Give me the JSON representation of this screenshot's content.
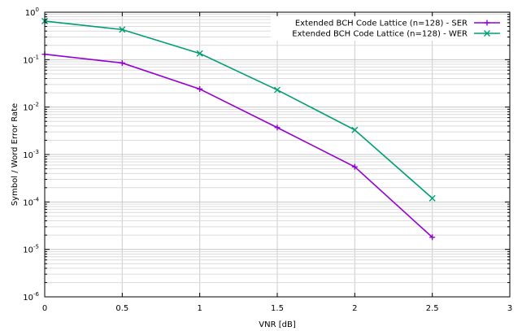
{
  "chart_data": {
    "type": "line",
    "xlabel": "VNR [dB]",
    "ylabel": "Symbol / Word Error Rate",
    "xlim": [
      0,
      3
    ],
    "ylim": [
      1e-06,
      1
    ],
    "yscale": "log",
    "grid": true,
    "legend_position": "top-right",
    "x_ticks": [
      "0",
      "0.5",
      "1",
      "1.5",
      "2",
      "2.5",
      "3"
    ],
    "x_tick_values": [
      0,
      0.5,
      1,
      1.5,
      2,
      2.5,
      3
    ],
    "y_ticks": [
      {
        "base": "10",
        "exp": "0",
        "value": 1
      },
      {
        "base": "10",
        "exp": "-1",
        "value": 0.1
      },
      {
        "base": "10",
        "exp": "-2",
        "value": 0.01
      },
      {
        "base": "10",
        "exp": "-3",
        "value": 0.001
      },
      {
        "base": "10",
        "exp": "-4",
        "value": 0.0001
      },
      {
        "base": "10",
        "exp": "-5",
        "value": 1e-05
      },
      {
        "base": "10",
        "exp": "-6",
        "value": 1e-06
      }
    ],
    "series": [
      {
        "name": "Extended BCH Code Lattice (n=128) - SER",
        "color": "#9400d3",
        "marker": "plus",
        "x": [
          0,
          0.5,
          1,
          1.5,
          2,
          2.5
        ],
        "y": [
          0.13,
          0.085,
          0.024,
          0.0037,
          0.00055,
          1.8e-05
        ]
      },
      {
        "name": "Extended BCH Code Lattice (n=128) -  WER",
        "color": "#009e73",
        "marker": "cross",
        "x": [
          0,
          0.5,
          1,
          1.5,
          2,
          2.5
        ],
        "y": [
          0.65,
          0.43,
          0.135,
          0.023,
          0.0033,
          0.00012
        ]
      }
    ]
  }
}
